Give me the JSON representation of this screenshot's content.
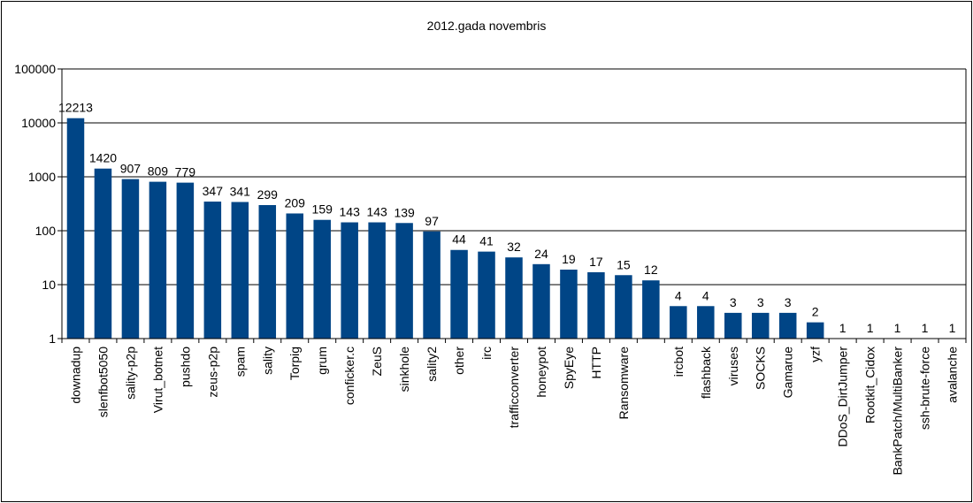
{
  "chart_data": {
    "type": "bar",
    "title": "2012.gada novembris",
    "xlabel": "",
    "ylabel": "",
    "yscale": "log",
    "ylim": [
      1,
      100000
    ],
    "ytick_labels": [
      "1",
      "10",
      "100",
      "1000",
      "10000",
      "100000"
    ],
    "grid": true,
    "legend": "none",
    "categories": [
      "downadup",
      "slenfbot5050",
      "sality-p2p",
      "Virut_botnet",
      "pushdo",
      "zeus-p2p",
      "spam",
      "sality",
      "Torpig",
      "grum",
      "conficker.c",
      "ZeuS",
      "sinkhole",
      "sality2",
      "other",
      "irc",
      "trafficconverter",
      "honeypot",
      "SpyEye",
      "HTTP",
      "Ransomware",
      "",
      "ircbot",
      "flashback",
      "viruses",
      "SOCKS",
      "Gamarue",
      "yzf",
      "DDoS_DirtJumper",
      "Rootkit_Cidox",
      "BankPatch/MultiBanker",
      "ssh-brute-force",
      "avalanche"
    ],
    "values": [
      12213,
      1420,
      907,
      809,
      779,
      347,
      341,
      299,
      209,
      159,
      143,
      143,
      139,
      97,
      44,
      41,
      32,
      24,
      19,
      17,
      15,
      12,
      4,
      4,
      3,
      3,
      3,
      2,
      1,
      1,
      1,
      1,
      1
    ],
    "bar_color": "#004586"
  }
}
